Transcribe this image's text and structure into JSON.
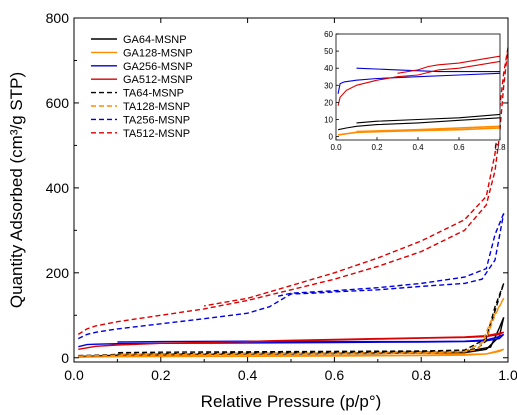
{
  "chart_data": [
    {
      "type": "line",
      "xlabel": "Relative Pressure (p/p°)",
      "ylabel": "Quantity Adsorbed (cm³/g STP)",
      "xlim": [
        0.0,
        1.0
      ],
      "ylim": [
        -10,
        800
      ],
      "xticks": [
        "0.0",
        "0.2",
        "0.4",
        "0.6",
        "0.8",
        "1.0"
      ],
      "yticks": [
        "0",
        "200",
        "400",
        "600",
        "800"
      ],
      "legend_position": "top-left",
      "series": [
        {
          "name": "GA64-MSNP",
          "color": "#000000",
          "dash": "solid",
          "adsorption": [
            [
              0.01,
              3
            ],
            [
              0.05,
              4
            ],
            [
              0.1,
              6
            ],
            [
              0.2,
              7
            ],
            [
              0.3,
              8
            ],
            [
              0.4,
              8.5
            ],
            [
              0.5,
              9
            ],
            [
              0.6,
              9.5
            ],
            [
              0.7,
              10
            ],
            [
              0.8,
              11
            ],
            [
              0.9,
              12
            ],
            [
              0.95,
              20
            ],
            [
              0.98,
              50
            ],
            [
              0.99,
              95
            ]
          ],
          "desorption": [
            [
              0.99,
              95
            ],
            [
              0.98,
              70
            ],
            [
              0.96,
              25
            ],
            [
              0.9,
              14
            ],
            [
              0.8,
              13
            ],
            [
              0.6,
              11
            ],
            [
              0.4,
              10
            ],
            [
              0.2,
              9
            ],
            [
              0.1,
              8
            ]
          ]
        },
        {
          "name": "GA128-MSNP",
          "color": "#ff8c00",
          "dash": "solid",
          "adsorption": [
            [
              0.01,
              1
            ],
            [
              0.05,
              2
            ],
            [
              0.1,
              2.5
            ],
            [
              0.2,
              3
            ],
            [
              0.4,
              3.5
            ],
            [
              0.6,
              4
            ],
            [
              0.8,
              5
            ],
            [
              0.9,
              6
            ],
            [
              0.95,
              9
            ],
            [
              0.98,
              15
            ],
            [
              0.99,
              20
            ]
          ],
          "desorption": [
            [
              0.99,
              20
            ],
            [
              0.95,
              9
            ],
            [
              0.8,
              6
            ],
            [
              0.4,
              4.5
            ],
            [
              0.1,
              3.5
            ]
          ]
        },
        {
          "name": "GA256-MSNP",
          "color": "#0000dd",
          "dash": "solid",
          "adsorption": [
            [
              0.01,
              26
            ],
            [
              0.03,
              31
            ],
            [
              0.05,
              32
            ],
            [
              0.1,
              33
            ],
            [
              0.2,
              34
            ],
            [
              0.4,
              35
            ],
            [
              0.6,
              36
            ],
            [
              0.8,
              37
            ],
            [
              0.9,
              38
            ],
            [
              0.95,
              40
            ],
            [
              0.98,
              45
            ],
            [
              0.99,
              55
            ]
          ],
          "desorption": [
            [
              0.99,
              55
            ],
            [
              0.98,
              50
            ],
            [
              0.95,
              42
            ],
            [
              0.9,
              39
            ],
            [
              0.8,
              38
            ],
            [
              0.6,
              38
            ],
            [
              0.4,
              39
            ],
            [
              0.2,
              38
            ],
            [
              0.1,
              37
            ]
          ]
        },
        {
          "name": "GA512-MSNP",
          "color": "#dd0000",
          "dash": "solid",
          "adsorption": [
            [
              0.01,
              20
            ],
            [
              0.05,
              27
            ],
            [
              0.1,
              30
            ],
            [
              0.2,
              34
            ],
            [
              0.3,
              36
            ],
            [
              0.4,
              38
            ],
            [
              0.5,
              40
            ],
            [
              0.6,
              42
            ],
            [
              0.7,
              44
            ],
            [
              0.8,
              46
            ],
            [
              0.9,
              48
            ],
            [
              0.95,
              50
            ],
            [
              0.98,
              55
            ],
            [
              0.99,
              60
            ]
          ],
          "desorption": [
            [
              0.99,
              60
            ],
            [
              0.95,
              52
            ],
            [
              0.9,
              49
            ],
            [
              0.8,
              47
            ],
            [
              0.7,
              45
            ],
            [
              0.6,
              43
            ],
            [
              0.5,
              41
            ],
            [
              0.45,
              40
            ],
            [
              0.4,
              38
            ]
          ]
        },
        {
          "name": "TA64-MSNP",
          "color": "#000000",
          "dash": "dashed",
          "adsorption": [
            [
              0.01,
              5
            ],
            [
              0.05,
              6
            ],
            [
              0.1,
              8
            ],
            [
              0.2,
              9
            ],
            [
              0.3,
              10
            ],
            [
              0.4,
              11
            ],
            [
              0.5,
              12
            ],
            [
              0.6,
              13
            ],
            [
              0.7,
              14
            ],
            [
              0.8,
              15
            ],
            [
              0.9,
              17
            ],
            [
              0.93,
              22
            ],
            [
              0.95,
              40
            ],
            [
              0.97,
              110
            ],
            [
              0.99,
              175
            ]
          ],
          "desorption": [
            [
              0.99,
              175
            ],
            [
              0.97,
              120
            ],
            [
              0.95,
              45
            ],
            [
              0.9,
              18
            ],
            [
              0.8,
              16
            ],
            [
              0.6,
              15
            ],
            [
              0.4,
              14
            ],
            [
              0.2,
              13
            ],
            [
              0.1,
              12
            ]
          ]
        },
        {
          "name": "TA128-MSNP",
          "color": "#ff8c00",
          "dash": "dashed",
          "adsorption": [
            [
              0.01,
              4
            ],
            [
              0.05,
              5
            ],
            [
              0.1,
              6
            ],
            [
              0.2,
              7
            ],
            [
              0.4,
              8
            ],
            [
              0.6,
              9
            ],
            [
              0.8,
              11
            ],
            [
              0.9,
              14
            ],
            [
              0.93,
              20
            ],
            [
              0.95,
              45
            ],
            [
              0.97,
              100
            ],
            [
              0.99,
              140
            ]
          ],
          "desorption": [
            [
              0.99,
              140
            ],
            [
              0.96,
              85
            ],
            [
              0.94,
              35
            ],
            [
              0.9,
              15
            ],
            [
              0.8,
              12
            ],
            [
              0.6,
              11
            ],
            [
              0.4,
              10
            ],
            [
              0.2,
              9
            ],
            [
              0.1,
              8
            ]
          ]
        },
        {
          "name": "TA256-MSNP",
          "color": "#0000dd",
          "dash": "dashed",
          "adsorption": [
            [
              0.01,
              45
            ],
            [
              0.03,
              55
            ],
            [
              0.05,
              60
            ],
            [
              0.1,
              68
            ],
            [
              0.2,
              80
            ],
            [
              0.3,
              92
            ],
            [
              0.4,
              105
            ],
            [
              0.45,
              120
            ],
            [
              0.5,
              150
            ],
            [
              0.55,
              152
            ],
            [
              0.6,
              155
            ],
            [
              0.7,
              160
            ],
            [
              0.8,
              168
            ],
            [
              0.9,
              175
            ],
            [
              0.94,
              185
            ],
            [
              0.97,
              230
            ],
            [
              0.99,
              340
            ]
          ],
          "desorption": [
            [
              0.99,
              340
            ],
            [
              0.97,
              290
            ],
            [
              0.95,
              210
            ],
            [
              0.9,
              190
            ],
            [
              0.8,
              175
            ],
            [
              0.7,
              165
            ],
            [
              0.6,
              158
            ],
            [
              0.5,
              152
            ],
            [
              0.47,
              145
            ]
          ]
        },
        {
          "name": "TA512-MSNP",
          "color": "#dd0000",
          "dash": "dashed",
          "adsorption": [
            [
              0.01,
              55
            ],
            [
              0.03,
              68
            ],
            [
              0.05,
              75
            ],
            [
              0.1,
              85
            ],
            [
              0.2,
              100
            ],
            [
              0.3,
              115
            ],
            [
              0.4,
              135
            ],
            [
              0.5,
              160
            ],
            [
              0.6,
              185
            ],
            [
              0.7,
              215
            ],
            [
              0.8,
              250
            ],
            [
              0.9,
              300
            ],
            [
              0.95,
              360
            ],
            [
              0.97,
              440
            ],
            [
              0.98,
              520
            ],
            [
              0.99,
              640
            ],
            [
              1.0,
              730
            ]
          ],
          "desorption": [
            [
              1.0,
              730
            ],
            [
              0.99,
              670
            ],
            [
              0.98,
              580
            ],
            [
              0.97,
              480
            ],
            [
              0.95,
              380
            ],
            [
              0.9,
              325
            ],
            [
              0.8,
              275
            ],
            [
              0.7,
              235
            ],
            [
              0.6,
              200
            ],
            [
              0.5,
              170
            ],
            [
              0.4,
              140
            ],
            [
              0.3,
              122
            ]
          ]
        }
      ]
    },
    {
      "type": "line",
      "xlim": [
        0.0,
        0.8
      ],
      "ylim": [
        -2,
        60
      ],
      "xticks": [
        "0.0",
        "0.2",
        "0.4",
        "0.6",
        "0.8"
      ],
      "yticks": [
        "0",
        "10",
        "20",
        "30",
        "40",
        "50",
        "60"
      ],
      "series": [
        {
          "color": "#000000",
          "dash": "solid",
          "points": [
            [
              0.01,
              4
            ],
            [
              0.05,
              5
            ],
            [
              0.1,
              6
            ],
            [
              0.2,
              7
            ],
            [
              0.4,
              8
            ],
            [
              0.6,
              9.5
            ],
            [
              0.8,
              11
            ]
          ]
        },
        {
          "color": "#000000",
          "dash": "solid",
          "points": [
            [
              0.1,
              8
            ],
            [
              0.2,
              9
            ],
            [
              0.4,
              10
            ],
            [
              0.6,
              11
            ],
            [
              0.8,
              13
            ]
          ]
        },
        {
          "color": "#ff8c00",
          "dash": "solid",
          "points": [
            [
              0.01,
              1
            ],
            [
              0.1,
              2.5
            ],
            [
              0.4,
              3.5
            ],
            [
              0.6,
              4
            ],
            [
              0.8,
              5
            ]
          ]
        },
        {
          "color": "#ff8c00",
          "dash": "solid",
          "points": [
            [
              0.1,
              3
            ],
            [
              0.4,
              4
            ],
            [
              0.8,
              6
            ]
          ]
        },
        {
          "color": "#0000dd",
          "dash": "solid",
          "points": [
            [
              0.01,
              25
            ],
            [
              0.02,
              31
            ],
            [
              0.04,
              32
            ],
            [
              0.1,
              33
            ],
            [
              0.2,
              34
            ],
            [
              0.4,
              35
            ],
            [
              0.6,
              36
            ],
            [
              0.8,
              37
            ]
          ]
        },
        {
          "color": "#0000dd",
          "dash": "solid",
          "points": [
            [
              0.1,
              40
            ],
            [
              0.3,
              39
            ],
            [
              0.5,
              38
            ],
            [
              0.6,
              38
            ],
            [
              0.8,
              38
            ]
          ]
        },
        {
          "color": "#dd0000",
          "dash": "solid",
          "points": [
            [
              0.01,
              18
            ],
            [
              0.02,
              23
            ],
            [
              0.05,
              27
            ],
            [
              0.1,
              30
            ],
            [
              0.2,
              33
            ],
            [
              0.3,
              35
            ],
            [
              0.4,
              36
            ],
            [
              0.5,
              39
            ],
            [
              0.6,
              40
            ],
            [
              0.7,
              42
            ],
            [
              0.8,
              44
            ]
          ]
        },
        {
          "color": "#dd0000",
          "dash": "solid",
          "points": [
            [
              0.3,
              37
            ],
            [
              0.4,
              39
            ],
            [
              0.45,
              41
            ],
            [
              0.5,
              42
            ],
            [
              0.6,
              43
            ],
            [
              0.7,
              45
            ],
            [
              0.8,
              47
            ]
          ]
        }
      ]
    }
  ]
}
